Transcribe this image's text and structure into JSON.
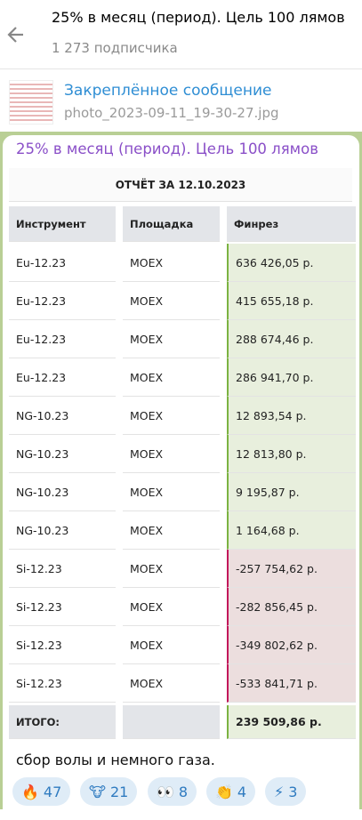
{
  "header": {
    "title": "25% в месяц (период). Цель 100 лямов",
    "subscribers": "1 273 подписчика"
  },
  "pinned": {
    "label": "Закреплённое сообщение",
    "file": "photo_2023-09-11_19-30-27.jpg"
  },
  "message": {
    "channel": "25% в месяц (период). Цель 100 лямов",
    "table": {
      "title": "ОТЧЁТ ЗА 12.10.2023",
      "columns": [
        "Инструмент",
        "Площадка",
        "Финрез"
      ],
      "rows": [
        [
          "Eu-12.23",
          "MOEX",
          "636 426,05 р."
        ],
        [
          "Eu-12.23",
          "MOEX",
          "415 655,18 р."
        ],
        [
          "Eu-12.23",
          "MOEX",
          "288 674,46 р."
        ],
        [
          "Eu-12.23",
          "MOEX",
          "286 941,70 р."
        ],
        [
          "NG-10.23",
          "MOEX",
          "12 893,54 р."
        ],
        [
          "NG-10.23",
          "MOEX",
          "12 813,80 р."
        ],
        [
          "NG-10.23",
          "MOEX",
          "9 195,87 р."
        ],
        [
          "NG-10.23",
          "MOEX",
          "1 164,68 р."
        ],
        [
          "Si-12.23",
          "MOEX",
          "-257 754,62 р."
        ],
        [
          "Si-12.23",
          "MOEX",
          "-282 856,45 р."
        ],
        [
          "Si-12.23",
          "MOEX",
          "-349 802,62 р."
        ],
        [
          "Si-12.23",
          "MOEX",
          "-533 841,71 р."
        ]
      ],
      "total": {
        "label": "ИТОГО:",
        "value": "239 509,86 р."
      }
    },
    "caption": "сбор волы и немного газа.",
    "reactions": [
      {
        "emoji": "🔥",
        "count": "47"
      },
      {
        "emoji": "🐮",
        "count": "21"
      },
      {
        "emoji": "👀",
        "count": "8"
      },
      {
        "emoji": "👏",
        "count": "4"
      },
      {
        "emoji": "⚡",
        "count": "3"
      }
    ]
  }
}
